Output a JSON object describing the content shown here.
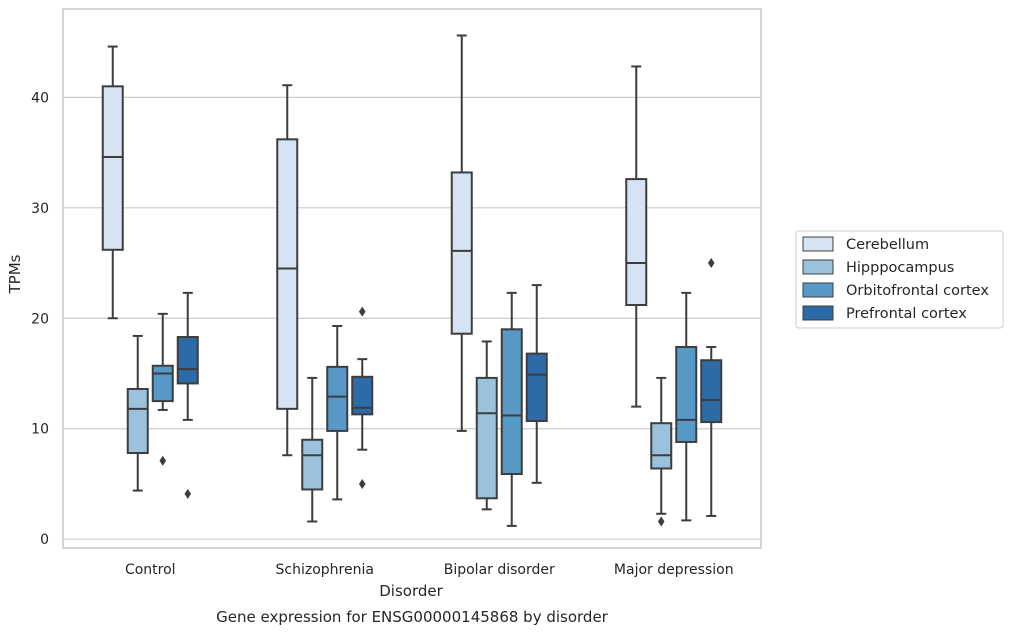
{
  "chart_data": {
    "type": "box",
    "title": "Gene expression for ENSG00000145868 by disorder",
    "xlabel": "Disorder",
    "ylabel": "TPMs",
    "ylim": [
      -0.8,
      48
    ],
    "yticks": [
      0,
      10,
      20,
      30,
      40
    ],
    "grid": "horizontal",
    "legend_position": "right",
    "categories": [
      "Control",
      "Schizophrenia",
      "Bipolar disorder",
      "Major depression"
    ],
    "series": [
      {
        "name": "Cerebellum",
        "color": "#d5e3f2",
        "boxes": [
          {
            "whislo": 20.0,
            "q1": 26.2,
            "med": 34.6,
            "q3": 41.0,
            "whishi": 44.6,
            "fliers": []
          },
          {
            "whislo": 7.6,
            "q1": 11.8,
            "med": 24.5,
            "q3": 36.2,
            "whishi": 41.1,
            "fliers": []
          },
          {
            "whislo": 9.8,
            "q1": 18.6,
            "med": 26.1,
            "q3": 33.2,
            "whishi": 45.6,
            "fliers": []
          },
          {
            "whislo": 12.0,
            "q1": 21.2,
            "med": 25.0,
            "q3": 32.6,
            "whishi": 42.8,
            "fliers": []
          }
        ]
      },
      {
        "name": "Hipppocampus",
        "color": "#9bc2dc",
        "boxes": [
          {
            "whislo": 4.4,
            "q1": 7.8,
            "med": 11.8,
            "q3": 13.6,
            "whishi": 18.4,
            "fliers": []
          },
          {
            "whislo": 1.6,
            "q1": 4.5,
            "med": 7.6,
            "q3": 9.0,
            "whishi": 14.6,
            "fliers": []
          },
          {
            "whislo": 2.7,
            "q1": 3.7,
            "med": 11.4,
            "q3": 14.6,
            "whishi": 17.9,
            "fliers": []
          },
          {
            "whislo": 2.3,
            "q1": 6.4,
            "med": 7.6,
            "q3": 10.5,
            "whishi": 14.6,
            "fliers": [
              1.6
            ]
          }
        ]
      },
      {
        "name": "Orbitofrontal cortex",
        "color": "#5699c7",
        "boxes": [
          {
            "whislo": 11.7,
            "q1": 12.5,
            "med": 15.0,
            "q3": 15.7,
            "whishi": 20.4,
            "fliers": [
              7.1
            ]
          },
          {
            "whislo": 3.6,
            "q1": 9.8,
            "med": 12.9,
            "q3": 15.6,
            "whishi": 19.3,
            "fliers": []
          },
          {
            "whislo": 1.2,
            "q1": 5.9,
            "med": 11.2,
            "q3": 19.0,
            "whishi": 22.3,
            "fliers": []
          },
          {
            "whislo": 1.7,
            "q1": 8.8,
            "med": 10.8,
            "q3": 17.4,
            "whishi": 22.3,
            "fliers": []
          }
        ]
      },
      {
        "name": "Prefrontal cortex",
        "color": "#2c6aa8",
        "boxes": [
          {
            "whislo": 10.8,
            "q1": 14.1,
            "med": 15.4,
            "q3": 18.3,
            "whishi": 22.3,
            "fliers": [
              4.1
            ]
          },
          {
            "whislo": 8.1,
            "q1": 11.3,
            "med": 11.9,
            "q3": 14.7,
            "whishi": 16.3,
            "fliers": [
              20.6,
              5.0
            ]
          },
          {
            "whislo": 5.1,
            "q1": 10.7,
            "med": 14.9,
            "q3": 16.8,
            "whishi": 23.0,
            "fliers": []
          },
          {
            "whislo": 2.1,
            "q1": 10.6,
            "med": 12.6,
            "q3": 16.2,
            "whishi": 17.4,
            "fliers": [
              25.0
            ]
          }
        ]
      }
    ]
  }
}
